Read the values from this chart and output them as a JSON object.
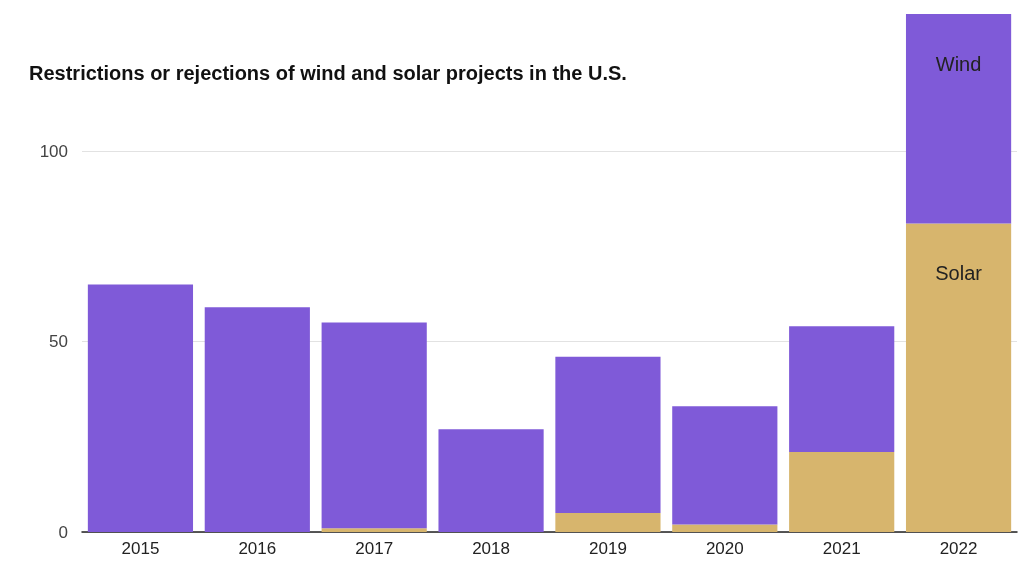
{
  "chart_data": {
    "type": "bar",
    "title": "Restrictions or rejections of wind and solar projects in the U.S.",
    "categories": [
      "2015",
      "2016",
      "2017",
      "2018",
      "2019",
      "2020",
      "2021",
      "2022"
    ],
    "stacked": true,
    "series": [
      {
        "name": "Solar",
        "color": "#d7b56d",
        "values": [
          0,
          0,
          1,
          0,
          5,
          2,
          21,
          81
        ]
      },
      {
        "name": "Wind",
        "color": "#7f5ad8",
        "values": [
          65,
          59,
          54,
          27,
          41,
          31,
          33,
          55
        ]
      }
    ],
    "ylim": [
      0,
      136
    ],
    "yticks": [
      0,
      50,
      100
    ],
    "grid": "y",
    "legend": false
  }
}
